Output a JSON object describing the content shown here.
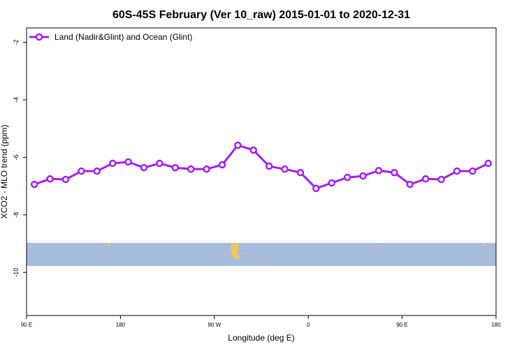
{
  "chart_data": {
    "type": "line",
    "title": "60S-45S February (Ver 10_raw)   2015-01-01 to 2020-12-31",
    "x_label": "Longitude (deg E)",
    "y_label": "XCO2 - MLO trend (ppm)",
    "x": [
      97.5,
      112.5,
      127.5,
      142.5,
      157.5,
      172.5,
      187.5,
      202.5,
      217.5,
      232.5,
      247.5,
      262.5,
      277.5,
      292.5,
      307.5,
      322.5,
      337.5,
      352.5,
      367.5,
      382.5,
      397.5,
      412.5,
      427.5,
      442.5,
      457.5,
      472.5,
      487.5,
      502.5,
      517.5,
      532.5
    ],
    "series": [
      {
        "name": "Land (Nadir&Glint) and Ocean (Glint)",
        "color": "#a020f0",
        "values": [
          -6.94,
          -6.75,
          -6.77,
          -6.48,
          -6.48,
          -6.21,
          -6.16,
          -6.36,
          -6.21,
          -6.36,
          -6.41,
          -6.41,
          -6.26,
          -5.58,
          -5.75,
          -6.31,
          -6.41,
          -6.53,
          -7.08,
          -6.89,
          -6.7,
          -6.65,
          -6.46,
          -6.53,
          -6.94,
          -6.75,
          -6.77,
          -6.48,
          -6.48,
          -6.21
        ]
      }
    ],
    "xlim": [
      90,
      540
    ],
    "xticks": [
      {
        "value": 90,
        "label": "90 E"
      },
      180,
      {
        "value": 270,
        "label": "90 W"
      },
      {
        "value": 360,
        "label": "0"
      },
      {
        "value": 450,
        "label": "90 E"
      },
      {
        "value": 540,
        "label": "180"
      }
    ],
    "ylim": [
      -11.5,
      -1.5
    ],
    "yticks": [
      -2,
      -4,
      -6,
      -8,
      -10
    ],
    "legend": "top-left"
  }
}
